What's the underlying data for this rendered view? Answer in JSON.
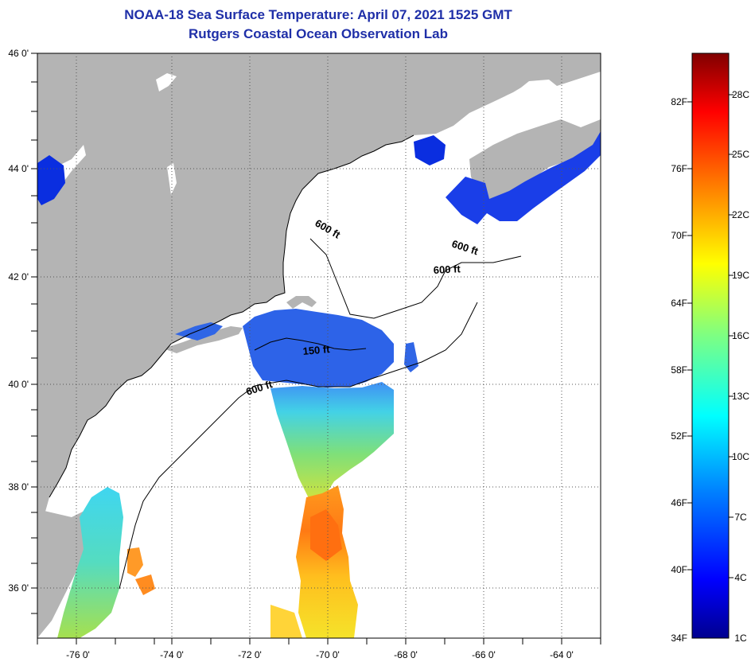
{
  "header": {
    "title": "NOAA-18 Sea Surface Temperature:  April 07, 2021 1525 GMT",
    "subtitle": "Rutgers Coastal Ocean Observation Lab"
  },
  "map": {
    "lat_labels": [
      "46 0'",
      "44 0'",
      "42 0'",
      "40 0'",
      "38 0'",
      "36 0'"
    ],
    "lon_labels": [
      "-76 0'",
      "-74 0'",
      "-72 0'",
      "-70 0'",
      "-68 0'",
      "-66 0'",
      "-64 0'"
    ],
    "depth_labels": [
      "600 ft",
      "600 ft",
      "600 ft",
      "150 ft",
      "600 ft"
    ],
    "colors": {
      "land": "#b4b4b4",
      "cloud": "#ffffff",
      "frame": "#000000"
    }
  },
  "colorbar": {
    "fahrenheit_labels": [
      "82F",
      "76F",
      "70F",
      "64F",
      "58F",
      "52F",
      "46F",
      "40F",
      "34F"
    ],
    "celsius_labels": [
      "28C",
      "25C",
      "22C",
      "19C",
      "16C",
      "13C",
      "10C",
      "7C",
      "4C",
      "1C"
    ]
  }
}
